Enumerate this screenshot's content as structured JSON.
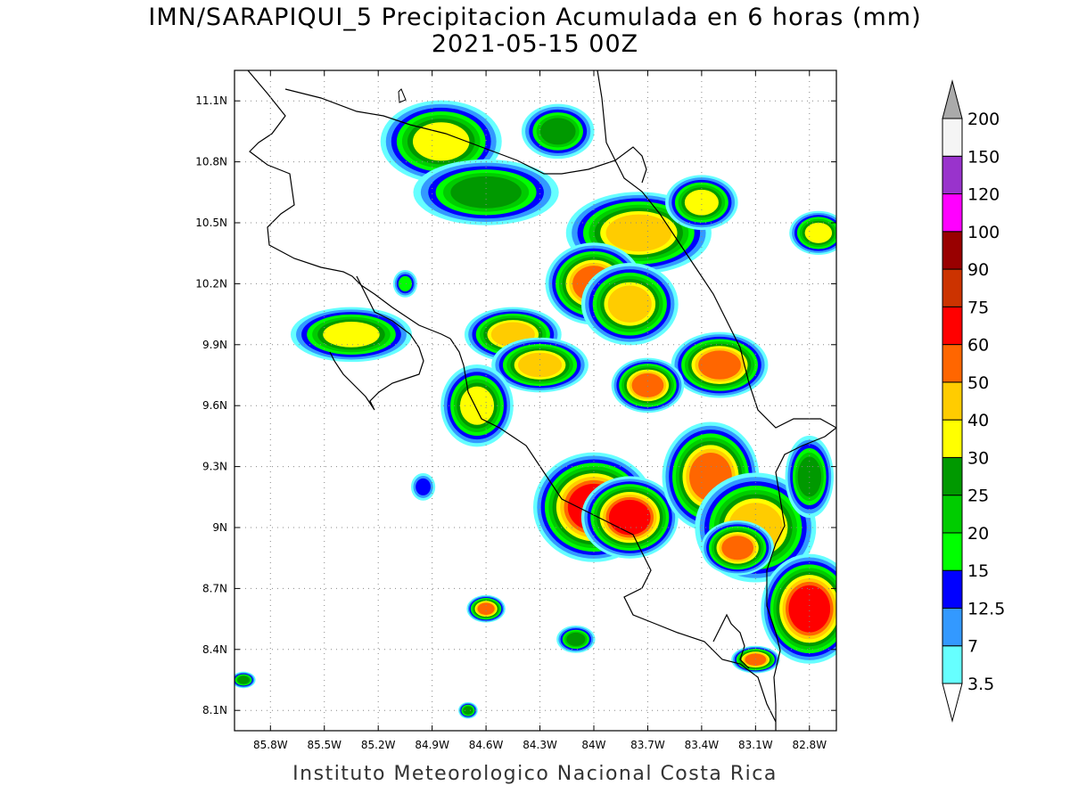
{
  "title_line1": "IMN/SARAPIQUI_5 Precipitacion Acumulada en 6 horas (mm)",
  "title_line2": "2021-05-15 00Z",
  "credit": "Instituto Meteorologico Nacional Costa Rica",
  "map": {
    "lon_range": [
      -86.0,
      -82.65
    ],
    "lat_range": [
      8.0,
      11.25
    ],
    "lon_ticks": [
      "85.8W",
      "85.5W",
      "85.2W",
      "84.9W",
      "84.6W",
      "84.3W",
      "84W",
      "83.7W",
      "83.4W",
      "83.1W",
      "82.8W"
    ],
    "lon_tick_values": [
      -85.8,
      -85.5,
      -85.2,
      -84.9,
      -84.6,
      -84.3,
      -84.0,
      -83.7,
      -83.4,
      -83.1,
      -82.8
    ],
    "lat_ticks": [
      "8.1N",
      "8.4N",
      "8.7N",
      "9N",
      "9.3N",
      "9.6N",
      "9.9N",
      "10.2N",
      "10.5N",
      "10.8N",
      "11.1N"
    ],
    "lat_tick_values": [
      8.1,
      8.4,
      8.7,
      9.0,
      9.3,
      9.6,
      9.9,
      10.2,
      10.5,
      10.8,
      11.1
    ],
    "grid": true,
    "grid_style": "dotted"
  },
  "legend": {
    "units": "mm",
    "levels": [
      "3.5",
      "7",
      "12.5",
      "15",
      "20",
      "25",
      "30",
      "40",
      "50",
      "60",
      "75",
      "90",
      "100",
      "120",
      "150",
      "200"
    ],
    "colors": [
      "#66ffff",
      "#3399ff",
      "#0000ff",
      "#00ff00",
      "#00cc00",
      "#009900",
      "#ffff00",
      "#ffcc00",
      "#ff6600",
      "#ff0000",
      "#cc3300",
      "#990000",
      "#ff00ff",
      "#9933cc",
      "#f5f5f5"
    ],
    "over_color": "#aaaaaa",
    "under_color": "#ffffff"
  },
  "precip_cells": [
    {
      "lon": -84.85,
      "lat": 10.9,
      "rx": 0.25,
      "ry": 0.15,
      "value": 30
    },
    {
      "lon": -84.6,
      "lat": 10.65,
      "rx": 0.3,
      "ry": 0.12,
      "value": 25
    },
    {
      "lon": -84.2,
      "lat": 10.95,
      "rx": 0.15,
      "ry": 0.1,
      "value": 25
    },
    {
      "lon": -83.75,
      "lat": 10.45,
      "rx": 0.3,
      "ry": 0.15,
      "value": 40
    },
    {
      "lon": -84.0,
      "lat": 10.2,
      "rx": 0.2,
      "ry": 0.15,
      "value": 50
    },
    {
      "lon": -83.8,
      "lat": 10.1,
      "rx": 0.2,
      "ry": 0.15,
      "value": 40
    },
    {
      "lon": -83.4,
      "lat": 10.6,
      "rx": 0.15,
      "ry": 0.1,
      "value": 30
    },
    {
      "lon": -83.3,
      "lat": 9.8,
      "rx": 0.2,
      "ry": 0.12,
      "value": 50
    },
    {
      "lon": -84.45,
      "lat": 9.95,
      "rx": 0.2,
      "ry": 0.1,
      "value": 40
    },
    {
      "lon": -84.3,
      "lat": 9.8,
      "rx": 0.2,
      "ry": 0.1,
      "value": 40
    },
    {
      "lon": -85.35,
      "lat": 9.95,
      "rx": 0.25,
      "ry": 0.1,
      "value": 30
    },
    {
      "lon": -83.7,
      "lat": 9.7,
      "rx": 0.15,
      "ry": 0.1,
      "value": 50
    },
    {
      "lon": -84.0,
      "lat": 9.1,
      "rx": 0.25,
      "ry": 0.2,
      "value": 60
    },
    {
      "lon": -83.8,
      "lat": 9.05,
      "rx": 0.2,
      "ry": 0.15,
      "value": 60
    },
    {
      "lon": -83.35,
      "lat": 9.25,
      "rx": 0.2,
      "ry": 0.2,
      "value": 50
    },
    {
      "lon": -83.1,
      "lat": 9.0,
      "rx": 0.25,
      "ry": 0.2,
      "value": 40
    },
    {
      "lon": -82.8,
      "lat": 8.6,
      "rx": 0.2,
      "ry": 0.2,
      "value": 60
    },
    {
      "lon": -83.2,
      "lat": 8.9,
      "rx": 0.15,
      "ry": 0.1,
      "value": 50
    },
    {
      "lon": -82.75,
      "lat": 10.45,
      "rx": 0.12,
      "ry": 0.08,
      "value": 30
    },
    {
      "lon": -84.6,
      "lat": 8.6,
      "rx": 0.08,
      "ry": 0.05,
      "value": 50
    },
    {
      "lon": -83.1,
      "lat": 8.35,
      "rx": 0.1,
      "ry": 0.05,
      "value": 50
    },
    {
      "lon": -84.1,
      "lat": 8.45,
      "rx": 0.08,
      "ry": 0.05,
      "value": 25
    },
    {
      "lon": -84.65,
      "lat": 9.6,
      "rx": 0.15,
      "ry": 0.15,
      "value": 30
    },
    {
      "lon": -82.8,
      "lat": 9.25,
      "rx": 0.1,
      "ry": 0.15,
      "value": 25
    },
    {
      "lon": -85.05,
      "lat": 10.2,
      "rx": 0.05,
      "ry": 0.05,
      "value": 15
    },
    {
      "lon": -84.95,
      "lat": 9.2,
      "rx": 0.05,
      "ry": 0.05,
      "value": 12.5
    },
    {
      "lon": -85.95,
      "lat": 8.25,
      "rx": 0.05,
      "ry": 0.03,
      "value": 25
    },
    {
      "lon": -84.7,
      "lat": 8.1,
      "rx": 0.04,
      "ry": 0.03,
      "value": 25
    }
  ]
}
